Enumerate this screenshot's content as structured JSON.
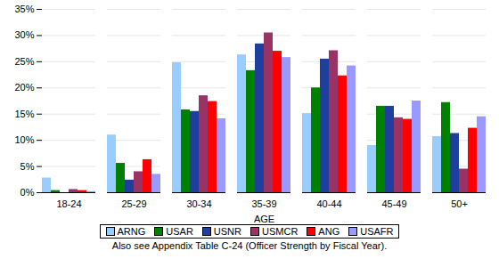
{
  "chart_data": {
    "type": "bar",
    "x_label": "AGE",
    "caption": "Also see Appendix Table C-24 (Officer Strength by Fiscal Year).",
    "categories": [
      "18-24",
      "25-29",
      "30-34",
      "35-39",
      "40-44",
      "45-49",
      "50+"
    ],
    "series": [
      {
        "name": "ARNG",
        "color": "#99ccff",
        "values": [
          2.8,
          11,
          24.8,
          26.3,
          15.1,
          9,
          10.7
        ]
      },
      {
        "name": "USAR",
        "color": "#008000",
        "values": [
          0.4,
          5.6,
          15.8,
          23.3,
          20,
          16.5,
          17.2
        ]
      },
      {
        "name": "USNR",
        "color": "#1f3f9f",
        "values": [
          0,
          2.4,
          15.5,
          28.4,
          25.5,
          16.5,
          11.3
        ]
      },
      {
        "name": "USMCR",
        "color": "#993366",
        "values": [
          0.6,
          4,
          18.5,
          30.5,
          27.1,
          14.3,
          4.5
        ]
      },
      {
        "name": "ANG",
        "color": "#ff0000",
        "values": [
          0.4,
          6.3,
          17.4,
          27,
          22.3,
          14,
          12.3
        ]
      },
      {
        "name": "USAFR",
        "color": "#9999ff",
        "values": [
          0.2,
          3.5,
          14.1,
          25.8,
          24.2,
          17.5,
          14.5
        ]
      }
    ],
    "ylim": [
      0,
      35
    ],
    "yticks": [
      {
        "value": 0,
        "label": "0%"
      },
      {
        "value": 5,
        "label": "5%"
      },
      {
        "value": 10,
        "label": "10%"
      },
      {
        "value": 15,
        "label": "15%"
      },
      {
        "value": 20,
        "label": "20%"
      },
      {
        "value": 25,
        "label": "25%"
      },
      {
        "value": 30,
        "label": "30%"
      },
      {
        "value": 35,
        "label": "35%"
      }
    ],
    "grid": true,
    "legend": "bottom"
  }
}
